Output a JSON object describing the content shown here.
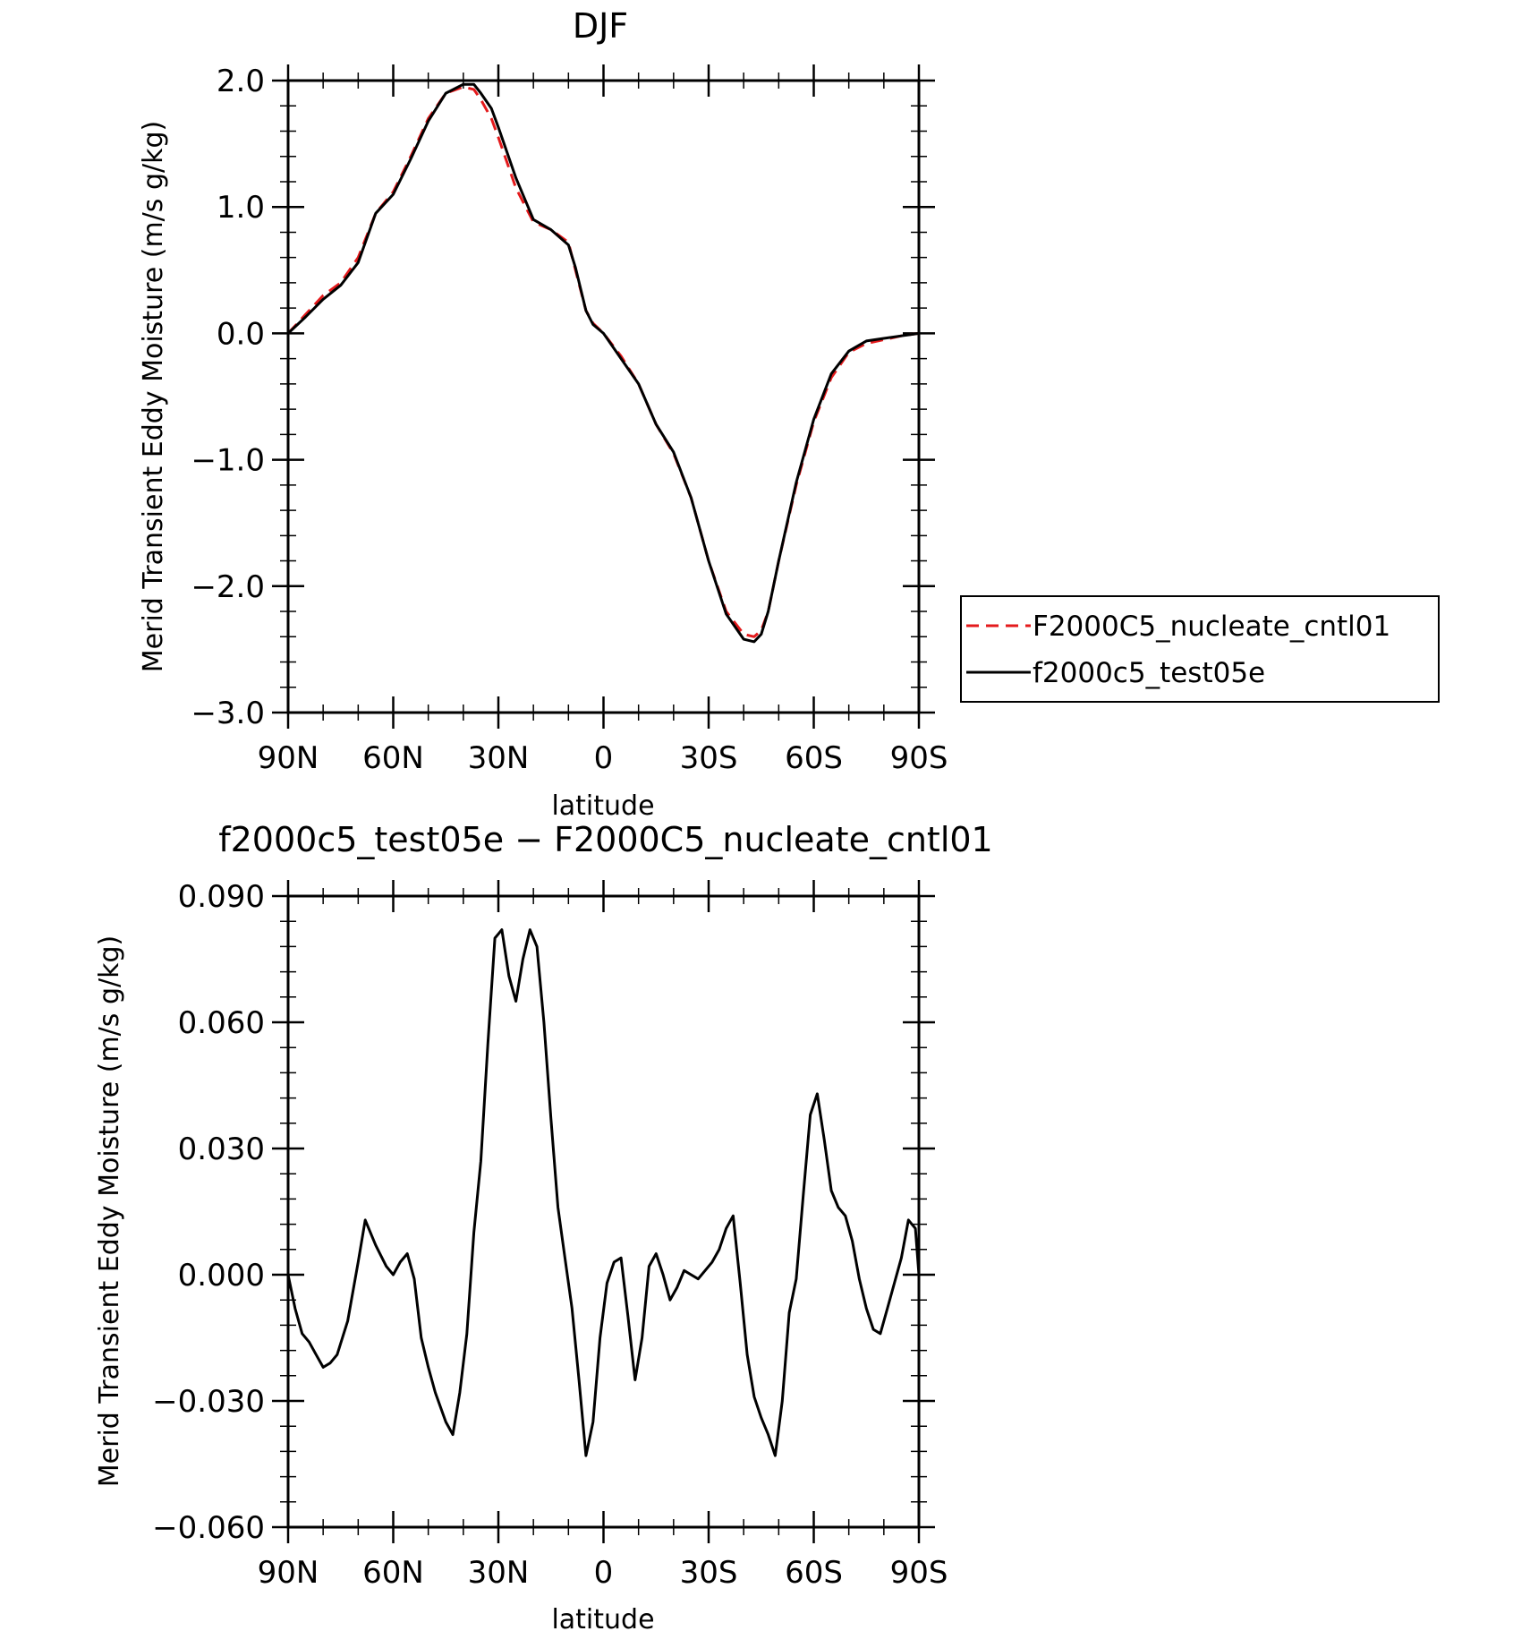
{
  "chart_data": [
    {
      "type": "line",
      "title": "DJF",
      "xlabel": "latitude",
      "ylabel": "Merid Transient Eddy Moisture (m/s g/kg)",
      "xlim": [
        90,
        -90
      ],
      "ylim": [
        -3.0,
        2.0
      ],
      "x_ticks": [
        90,
        60,
        30,
        0,
        -30,
        -60,
        -90
      ],
      "x_tick_labels": [
        "90N",
        "60N",
        "30N",
        "0",
        "30S",
        "60S",
        "90S"
      ],
      "y_ticks": [
        2.0,
        1.0,
        0.0,
        -1.0,
        -2.0,
        -3.0
      ],
      "y_tick_labels": [
        "2.0",
        "1.0",
        "0.0",
        "−1.0",
        "−2.0",
        "−3.0"
      ],
      "legend_position": "right",
      "series": [
        {
          "name": "F2000C5_nucleate_cntl01",
          "color": "#e41a1c",
          "dash": "dashed",
          "x": [
            90,
            85,
            80,
            75,
            70,
            65,
            60,
            55,
            50,
            45,
            40,
            37,
            35,
            32,
            30,
            25,
            20,
            15,
            10,
            8,
            5,
            3,
            0,
            -5,
            -10,
            -15,
            -20,
            -25,
            -30,
            -35,
            -40,
            -43,
            -45,
            -47,
            -50,
            -55,
            -60,
            -65,
            -70,
            -75,
            -80,
            -85,
            -90
          ],
          "y": [
            0.0,
            0.15,
            0.3,
            0.4,
            0.6,
            0.95,
            1.12,
            1.4,
            1.7,
            1.9,
            1.95,
            1.93,
            1.85,
            1.7,
            1.55,
            1.15,
            0.88,
            0.82,
            0.72,
            0.5,
            0.18,
            0.08,
            0.0,
            -0.18,
            -0.4,
            -0.72,
            -0.95,
            -1.3,
            -1.8,
            -2.2,
            -2.38,
            -2.4,
            -2.35,
            -2.2,
            -1.8,
            -1.2,
            -0.7,
            -0.35,
            -0.15,
            -0.08,
            -0.05,
            -0.02,
            0.0
          ]
        },
        {
          "name": "f2000c5_test05e",
          "color": "#000000",
          "dash": "solid",
          "x": [
            90,
            85,
            80,
            75,
            70,
            65,
            60,
            55,
            50,
            45,
            40,
            37,
            35,
            32,
            30,
            25,
            20,
            15,
            10,
            8,
            5,
            3,
            0,
            -5,
            -10,
            -15,
            -20,
            -25,
            -30,
            -35,
            -40,
            -43,
            -45,
            -47,
            -50,
            -55,
            -60,
            -65,
            -70,
            -75,
            -80,
            -85,
            -90
          ],
          "y": [
            0.0,
            0.13,
            0.27,
            0.38,
            0.56,
            0.95,
            1.1,
            1.38,
            1.68,
            1.9,
            1.97,
            1.97,
            1.9,
            1.78,
            1.63,
            1.23,
            0.9,
            0.82,
            0.7,
            0.52,
            0.18,
            0.07,
            0.0,
            -0.2,
            -0.4,
            -0.72,
            -0.94,
            -1.3,
            -1.8,
            -2.22,
            -2.42,
            -2.44,
            -2.38,
            -2.2,
            -1.8,
            -1.18,
            -0.68,
            -0.32,
            -0.14,
            -0.06,
            -0.04,
            -0.02,
            0.0
          ]
        }
      ]
    },
    {
      "type": "line",
      "title": "f2000c5_test05e − F2000C5_nucleate_cntl01",
      "xlabel": "latitude",
      "ylabel": "Merid Transient Eddy Moisture (m/s g/kg)",
      "xlim": [
        90,
        -90
      ],
      "ylim": [
        -0.06,
        0.09
      ],
      "x_ticks": [
        90,
        60,
        30,
        0,
        -30,
        -60,
        -90
      ],
      "x_tick_labels": [
        "90N",
        "60N",
        "30N",
        "0",
        "30S",
        "60S",
        "90S"
      ],
      "y_ticks": [
        0.09,
        0.06,
        0.03,
        0.0,
        -0.03,
        -0.06
      ],
      "y_tick_labels": [
        "0.090",
        "0.060",
        "0.030",
        "0.000",
        "−0.030",
        "−0.060"
      ],
      "series": [
        {
          "color": "#000000",
          "dash": "solid",
          "x": [
            90,
            88,
            86,
            84,
            82,
            80,
            78,
            76,
            73,
            70,
            68,
            65,
            62,
            60,
            58,
            56,
            54,
            52,
            50,
            48,
            45,
            43,
            41,
            39,
            37,
            35,
            33,
            31,
            30,
            29,
            27,
            25,
            23,
            21,
            19,
            17,
            15,
            13,
            11,
            9,
            7,
            5,
            3,
            1,
            -1,
            -3,
            -5,
            -7,
            -9,
            -11,
            -13,
            -15,
            -17,
            -19,
            -21,
            -23,
            -25,
            -27,
            -29,
            -31,
            -33,
            -35,
            -37,
            -39,
            -41,
            -43,
            -45,
            -47,
            -49,
            -51,
            -53,
            -55,
            -57,
            -59,
            -61,
            -63,
            -65,
            -67,
            -69,
            -71,
            -73,
            -75,
            -77,
            -79,
            -81,
            -83,
            -85,
            -87,
            -89,
            -90
          ],
          "y": [
            0.0,
            -0.008,
            -0.014,
            -0.016,
            -0.019,
            -0.022,
            -0.021,
            -0.019,
            -0.011,
            0.003,
            0.013,
            0.007,
            0.002,
            0.0,
            0.003,
            0.005,
            -0.001,
            -0.015,
            -0.022,
            -0.028,
            -0.035,
            -0.038,
            -0.028,
            -0.014,
            0.01,
            0.027,
            0.055,
            0.08,
            0.081,
            0.082,
            0.071,
            0.065,
            0.075,
            0.082,
            0.078,
            0.06,
            0.037,
            0.016,
            0.004,
            -0.008,
            -0.025,
            -0.043,
            -0.035,
            -0.015,
            -0.002,
            0.003,
            0.004,
            -0.01,
            -0.025,
            -0.015,
            0.002,
            0.005,
            0.0,
            -0.006,
            -0.003,
            0.001,
            0.0,
            -0.001,
            0.001,
            0.003,
            0.006,
            0.011,
            0.014,
            -0.002,
            -0.019,
            -0.029,
            -0.034,
            -0.038,
            -0.043,
            -0.03,
            -0.009,
            -0.001,
            0.019,
            0.038,
            0.043,
            0.032,
            0.02,
            0.016,
            0.014,
            0.008,
            -0.001,
            -0.008,
            -0.013,
            -0.014,
            -0.008,
            -0.002,
            0.004,
            0.013,
            0.011,
            0.0
          ]
        }
      ]
    }
  ]
}
